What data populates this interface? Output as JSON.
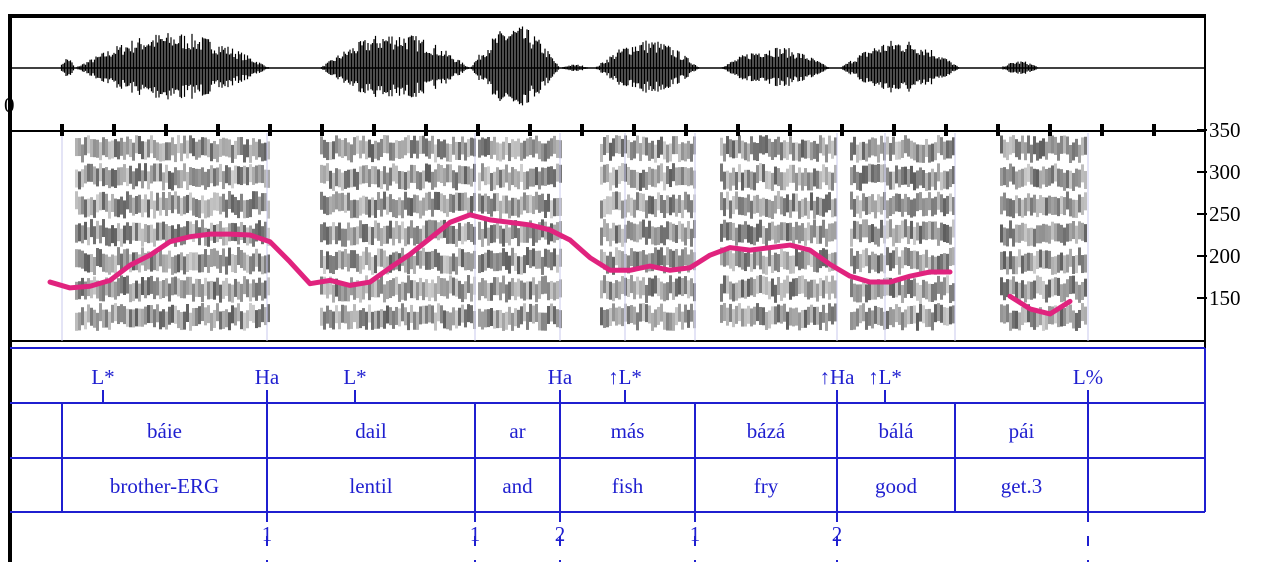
{
  "waveform_label": "0",
  "chart_data": {
    "type": "line",
    "ylim": [
      100,
      350
    ],
    "yticks": [
      150,
      200,
      250,
      300,
      350
    ],
    "series": [
      {
        "color": "#e0237e",
        "values": [
          169,
          162,
          164,
          171,
          189,
          201,
          217,
          223,
          226,
          226,
          225,
          217,
          193,
          167,
          171,
          165,
          169,
          186,
          202,
          221,
          240,
          249,
          243,
          240,
          237,
          231,
          219,
          198,
          183,
          183,
          188,
          183,
          186,
          201,
          210,
          207,
          210,
          213,
          207,
          190,
          176,
          169,
          169,
          176,
          181,
          181,
          null,
          null,
          152,
          137,
          131,
          146
        ]
      }
    ]
  },
  "tiers": {
    "tones": [
      "L*",
      "Ha",
      "L*",
      "Ha",
      "↑L*",
      "↑Ha",
      "↑L*",
      "L%"
    ],
    "words": [
      "báie",
      "dail",
      "ar",
      "más",
      "bázá",
      "bálá",
      "pái"
    ],
    "glosses": [
      "brother-ERG",
      "lentil",
      "and",
      "fish",
      "fry",
      "good",
      "get.3"
    ],
    "breaks": [
      "1",
      "1",
      "2",
      "1",
      "2"
    ]
  }
}
